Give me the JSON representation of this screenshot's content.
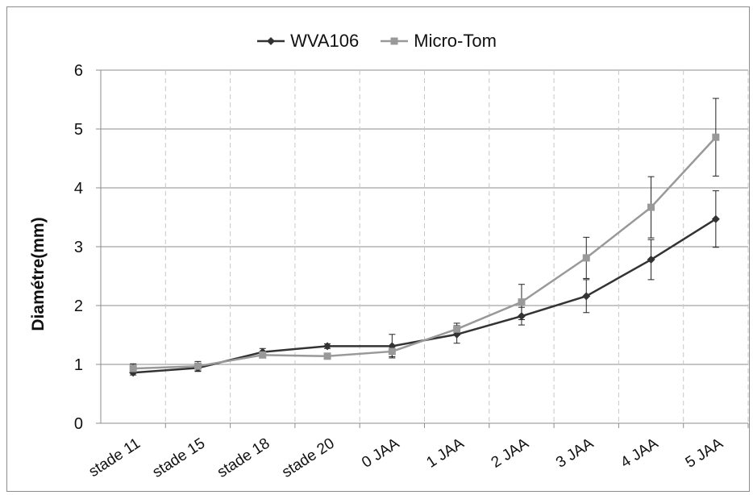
{
  "chart_data": {
    "type": "line",
    "title": "",
    "xlabel": "",
    "ylabel": "Diamétre(mm)",
    "ylim": [
      0,
      6
    ],
    "yticks": [
      0,
      1,
      2,
      3,
      4,
      5,
      6
    ],
    "grid": "horizontal solid, vertical dashed",
    "legend_position": "top-center",
    "categories": [
      "stade 11",
      "stade 15",
      "stade 18",
      "stade 20",
      "0 JAA",
      "1 JAA",
      "2 JAA",
      "3 JAA",
      "4 JAA",
      "5 JAA"
    ],
    "series": [
      {
        "name": "WVA106",
        "color": "#333333",
        "marker": "diamond",
        "values": [
          0.86,
          0.94,
          1.21,
          1.31,
          1.31,
          1.51,
          1.82,
          2.16,
          2.78,
          3.47
        ],
        "errors": [
          0.04,
          0.06,
          0.06,
          0.04,
          0.2,
          0.15,
          0.15,
          0.28,
          0.34,
          0.48
        ]
      },
      {
        "name": "Micro-Tom",
        "color": "#999999",
        "marker": "square",
        "values": [
          0.93,
          0.97,
          1.16,
          1.14,
          1.22,
          1.6,
          2.06,
          2.81,
          3.67,
          4.86
        ],
        "errors": [
          0.08,
          0.08,
          0.05,
          0.05,
          0.09,
          0.1,
          0.3,
          0.35,
          0.52,
          0.66
        ]
      }
    ]
  }
}
